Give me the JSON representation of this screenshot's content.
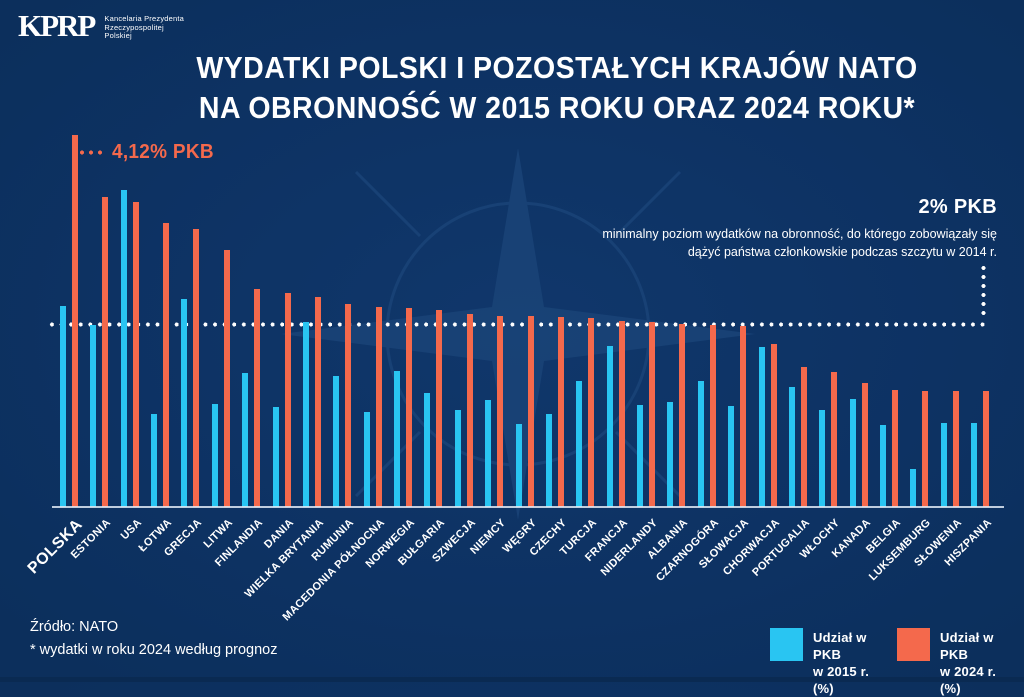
{
  "logo": {
    "acronym": "KPRP",
    "org_line1": "Kancelaria Prezydenta",
    "org_line2": "Rzeczypospolitej",
    "org_line3": "Polskiej"
  },
  "title": {
    "line1": "WYDATKI POLSKI I POZOSTAŁYCH KRAJÓW NATO",
    "line2": "NA OBRONNOŚĆ W 2015 ROKU ORAZ 2024 ROKU*"
  },
  "annotations": {
    "poland_peak_label": "4,12% PKB",
    "threshold_heading": "2% PKB",
    "threshold_desc_line1": "minimalny poziom wydatków na obronność, do którego zobowiązały się",
    "threshold_desc_line2": "dążyć państwa członkowskie podczas szczytu w 2014 r."
  },
  "footnotes": {
    "source": "Źródło: NATO",
    "note": "* wydatki w roku 2024 według prognoz"
  },
  "legend": [
    {
      "label_line1": "Udział w PKB",
      "label_line2": "w 2015 r. (%)",
      "color": "#29C5F2"
    },
    {
      "label_line1": "Udział w PKB",
      "label_line2": "w 2024 r. (%)",
      "color": "#F4694C"
    }
  ],
  "colors": {
    "background": "#0D3263",
    "bar_2015": "#29C5F2",
    "bar_2024": "#F4694C",
    "accent_orange": "#F4694C",
    "watermark": "#1A4478",
    "text": "#FFFFFF"
  },
  "chart_data": {
    "type": "bar",
    "title": "Wydatki Polski i pozostałych krajów NATO na obronność w 2015 roku oraz 2024 roku (% PKB)",
    "unit": "% PKB",
    "grid": false,
    "legend_position": "bottom-right",
    "ylim": [
      0,
      4.3
    ],
    "threshold": {
      "value": 2,
      "label": "2% PKB"
    },
    "highlight": {
      "category": "POLSKA",
      "series": "Udział w PKB w 2024 r. (%)",
      "value_label": "4,12% PKB"
    },
    "categories": [
      "POLSKA",
      "ESTONIA",
      "USA",
      "ŁOTWA",
      "GRECJA",
      "LITWA",
      "FINLANDIA",
      "DANIA",
      "WIELKA BRYTANIA",
      "RUMUNIA",
      "MACEDONIA PÓŁNOCNA",
      "NORWEGIA",
      "BUŁGARIA",
      "SZWECJA",
      "NIEMCY",
      "WĘGRY",
      "CZECHY",
      "TURCJA",
      "FRANCJA",
      "NIDERLANDY",
      "ALBANIA",
      "CZARNOGÓRA",
      "SŁOWACJA",
      "CHORWACJA",
      "PORTUGALIA",
      "WŁOCHY",
      "KANADA",
      "BELGIA",
      "LUKSEMBURG",
      "SŁOWENIA",
      "HISZPANIA"
    ],
    "series": [
      {
        "name": "Udział w PKB w 2015 r. (%)",
        "key": "2015",
        "color": "#29C5F2",
        "values": [
          2.23,
          2.02,
          3.51,
          1.03,
          2.3,
          1.14,
          1.48,
          1.11,
          2.05,
          1.45,
          1.05,
          1.51,
          1.26,
          1.07,
          1.19,
          0.92,
          1.03,
          1.39,
          1.78,
          1.13,
          1.16,
          1.4,
          1.12,
          1.77,
          1.33,
          1.07,
          1.2,
          0.91,
          0.42,
          0.93,
          0.93
        ]
      },
      {
        "name": "Udział w PKB w 2024 r. (%)",
        "key": "2024",
        "color": "#F4694C",
        "values": [
          4.12,
          3.43,
          3.38,
          3.15,
          3.08,
          2.85,
          2.41,
          2.37,
          2.33,
          2.25,
          2.22,
          2.2,
          2.18,
          2.14,
          2.12,
          2.11,
          2.1,
          2.09,
          2.06,
          2.05,
          2.03,
          2.02,
          2.0,
          1.81,
          1.55,
          1.49,
          1.37,
          1.3,
          1.29,
          1.29,
          1.28
        ]
      }
    ]
  }
}
